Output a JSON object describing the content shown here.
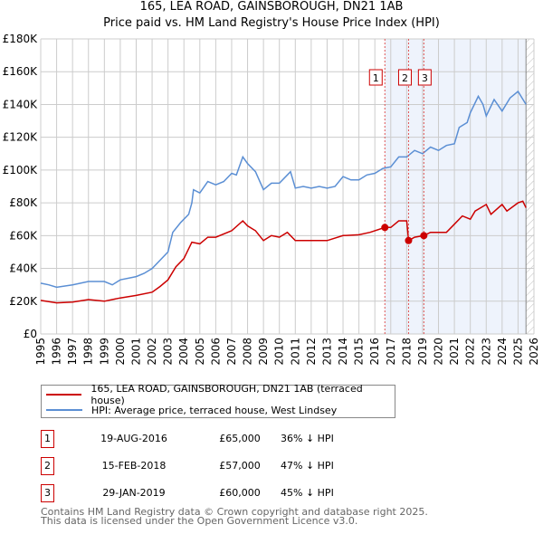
{
  "title_line1": "165, LEA ROAD, GAINSBOROUGH, DN21 1AB",
  "title_line2": "Price paid vs. HM Land Registry's House Price Index (HPI)",
  "chart_data": {
    "type": "line",
    "xlim": [
      1995,
      2026
    ],
    "ylim": [
      0,
      180000
    ],
    "yticks": [
      0,
      20000,
      40000,
      60000,
      80000,
      100000,
      120000,
      140000,
      160000,
      180000
    ],
    "ytick_labels": [
      "£0",
      "£20K",
      "£40K",
      "£60K",
      "£80K",
      "£100K",
      "£120K",
      "£140K",
      "£160K",
      "£180K"
    ],
    "xticks": [
      1995,
      1996,
      1997,
      1998,
      1999,
      2000,
      2001,
      2002,
      2003,
      2004,
      2005,
      2006,
      2007,
      2008,
      2009,
      2010,
      2011,
      2012,
      2013,
      2014,
      2015,
      2016,
      2017,
      2018,
      2019,
      2020,
      2021,
      2022,
      2023,
      2024,
      2025,
      2026
    ],
    "grid": true,
    "shaded_from": 2016.63,
    "data_end": 2025.5,
    "series": [
      {
        "name": "165, LEA ROAD, GAINSBOROUGH, DN21 1AB (terraced house)",
        "color": "#cc0000",
        "x": [
          1995,
          1996,
          1997,
          1998,
          1999,
          2000,
          2001,
          2002,
          2002.5,
          2003,
          2003.5,
          2004,
          2004.5,
          2005,
          2005.5,
          2006,
          2007,
          2007.7,
          2008,
          2008.5,
          2009,
          2009.5,
          2010,
          2010.5,
          2011,
          2012,
          2013,
          2014,
          2015,
          2015.7,
          2016.63,
          2017,
          2017.5,
          2018.0,
          2018.12,
          2018.5,
          2019.08,
          2019.5,
          2020,
          2020.5,
          2021,
          2021.5,
          2022,
          2022.3,
          2023,
          2023.3,
          2024,
          2024.3,
          2025,
          2025.3,
          2025.5
        ],
        "y": [
          20500,
          19000,
          19500,
          21000,
          20000,
          22000,
          23500,
          25500,
          29000,
          33000,
          41000,
          46000,
          56000,
          55000,
          59000,
          59000,
          63000,
          69000,
          66000,
          63000,
          57000,
          60000,
          59000,
          62000,
          57000,
          57000,
          57000,
          60000,
          60500,
          62000,
          65000,
          65000,
          69000,
          69000,
          57000,
          59000,
          60000,
          62000,
          62000,
          62000,
          67000,
          72000,
          70000,
          75000,
          79000,
          73000,
          79000,
          75000,
          80000,
          81000,
          77000
        ]
      },
      {
        "name": "HPI: Average price, terraced house, West Lindsey",
        "color": "#5b8fd4",
        "x": [
          1995,
          1995.5,
          1996,
          1997,
          1998,
          1999,
          1999.5,
          2000,
          2001,
          2001.5,
          2002,
          2002.5,
          2003,
          2003.3,
          2003.8,
          2004.3,
          2004.5,
          2004.6,
          2005,
          2005.5,
          2006,
          2006.5,
          2007,
          2007.3,
          2007.7,
          2008,
          2008.5,
          2009,
          2009.5,
          2010,
          2010.5,
          2010.7,
          2011,
          2011.5,
          2012,
          2012.5,
          2013,
          2013.5,
          2014,
          2014.5,
          2015,
          2015.5,
          2016,
          2016.5,
          2017,
          2017.5,
          2018,
          2018.5,
          2019,
          2019.5,
          2020,
          2020.5,
          2021,
          2021.3,
          2021.8,
          2022,
          2022.5,
          2022.8,
          2023,
          2023.5,
          2024,
          2024.5,
          2025,
          2025.5
        ],
        "y": [
          31000,
          30000,
          28500,
          30000,
          32000,
          32000,
          30000,
          33000,
          35000,
          37000,
          40000,
          45000,
          50000,
          62000,
          68000,
          73000,
          80000,
          88000,
          86000,
          93000,
          91000,
          93000,
          98000,
          97000,
          108000,
          104000,
          99000,
          88000,
          92000,
          92000,
          97000,
          99000,
          89000,
          90000,
          89000,
          90000,
          89000,
          90000,
          96000,
          94000,
          94000,
          97000,
          98000,
          101000,
          102000,
          108000,
          108000,
          112000,
          110000,
          114000,
          112000,
          115000,
          116000,
          126000,
          129000,
          135000,
          145000,
          140000,
          133000,
          143000,
          136000,
          144000,
          148000,
          140000
        ]
      }
    ],
    "sales": [
      {
        "num": "1",
        "x": 2016.63,
        "y": 65000
      },
      {
        "num": "2",
        "x": 2018.12,
        "y": 57000
      },
      {
        "num": "3",
        "x": 2019.08,
        "y": 60000
      }
    ]
  },
  "legend": {
    "property": "165, LEA ROAD, GAINSBOROUGH, DN21 1AB (terraced house)",
    "hpi": "HPI: Average price, terraced house, West Lindsey"
  },
  "sales_table": [
    {
      "num": "1",
      "date": "19-AUG-2016",
      "price": "£65,000",
      "hpi": "36% ↓ HPI"
    },
    {
      "num": "2",
      "date": "15-FEB-2018",
      "price": "£57,000",
      "hpi": "47% ↓ HPI"
    },
    {
      "num": "3",
      "date": "29-JAN-2019",
      "price": "£60,000",
      "hpi": "45% ↓ HPI"
    }
  ],
  "footer": {
    "line1": "Contains HM Land Registry data © Crown copyright and database right 2025.",
    "line2": "This data is licensed under the Open Government Licence v3.0."
  }
}
